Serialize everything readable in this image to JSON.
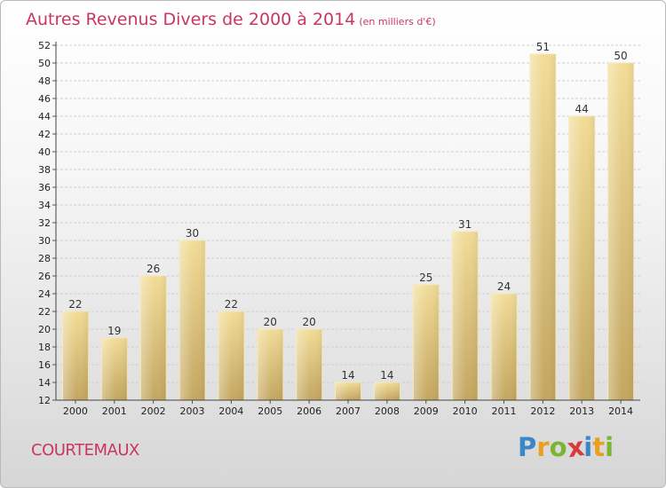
{
  "title": "Autres Revenus Divers de 2000 à 2014",
  "subtitle": "(en milliers d'€)",
  "footer_label": "COURTEMAUX",
  "logo": {
    "letters": [
      "P",
      "r",
      "o",
      "x",
      "i",
      "t",
      "i"
    ],
    "colors": [
      "#3a87c8",
      "#e8a020",
      "#7cb534",
      "#d83a3a",
      "#3a87c8",
      "#e8a020",
      "#7cb534"
    ]
  },
  "chart_data": {
    "type": "bar",
    "title": "Autres Revenus Divers de 2000 à 2014",
    "subtitle": "(en milliers d'€)",
    "xlabel": "",
    "ylabel": "",
    "categories": [
      "2000",
      "2001",
      "2002",
      "2003",
      "2004",
      "2005",
      "2006",
      "2007",
      "2008",
      "2009",
      "2010",
      "2011",
      "2012",
      "2013",
      "2014"
    ],
    "values": [
      22,
      19,
      26,
      30,
      22,
      20,
      20,
      14,
      14,
      25,
      31,
      24,
      51,
      44,
      50
    ],
    "ylim": [
      12,
      52
    ],
    "yticks": [
      12,
      14,
      16,
      18,
      20,
      22,
      24,
      26,
      28,
      30,
      32,
      34,
      36,
      38,
      40,
      42,
      44,
      46,
      48,
      50,
      52
    ],
    "grid": true,
    "bar_color": "#e9cd83",
    "legend": "none"
  }
}
